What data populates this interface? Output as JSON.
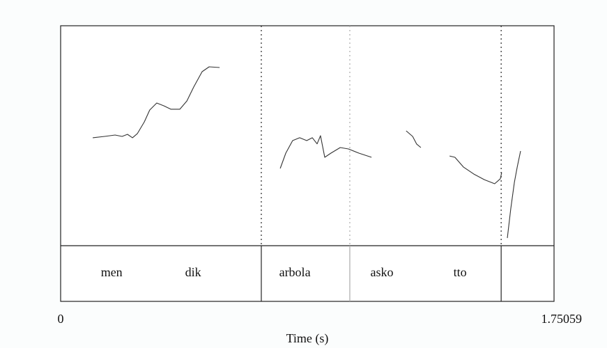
{
  "chart_data": {
    "type": "line",
    "xlabel": "Time (s)",
    "xlim": [
      0,
      1.75059
    ],
    "xticks": [
      0,
      1.75059
    ],
    "ylim": [
      75,
      300
    ],
    "x": [
      0.114,
      0.156,
      0.193,
      0.218,
      0.237,
      0.255,
      0.272,
      0.297,
      0.316,
      0.341,
      0.366,
      0.391,
      0.423,
      0.448,
      0.472,
      0.502,
      0.527,
      0.564,
      null,
      0.779,
      0.799,
      0.823,
      0.848,
      0.873,
      0.893,
      0.91,
      0.922,
      0.937,
      0.959,
      0.992,
      1.021,
      1.058,
      1.103,
      null,
      1.226,
      1.249,
      1.263,
      1.278,
      null,
      1.38,
      1.399,
      1.429,
      1.466,
      1.503,
      1.54,
      1.56,
      1.565,
      null,
      1.585,
      1.597,
      1.61,
      1.62,
      1.632
    ],
    "series": [
      {
        "color": "#333333",
        "values": [
          185.4,
          186.8,
          188.2,
          186.8,
          188.9,
          185.4,
          189.6,
          201.7,
          213.8,
          221.0,
          218.1,
          214.6,
          214.6,
          223.1,
          237.3,
          253.0,
          258.0,
          257.3,
          null,
          154.0,
          169.7,
          182.5,
          185.4,
          182.5,
          185.4,
          179.2,
          187.5,
          165.4,
          169.7,
          175.4,
          174.0,
          169.7,
          165.4,
          null,
          192.5,
          186.8,
          179.0,
          175.4,
          null,
          166.8,
          165.4,
          155.5,
          148.3,
          142.6,
          138.4,
          143.4,
          149.8,
          null,
          82.8,
          112.7,
          139.8,
          155.5,
          171.8
        ]
      }
    ],
    "tier": {
      "labels": [
        "men",
        "dik",
        "arbola",
        "asko",
        "tto"
      ],
      "label_times": [
        0.181,
        0.47,
        0.831,
        1.14,
        1.417
      ],
      "boundaries": [
        0.712,
        1.026,
        1.563
      ],
      "boundary_colors": [
        "#222222",
        "#aaaaaa",
        "#222222"
      ]
    }
  }
}
